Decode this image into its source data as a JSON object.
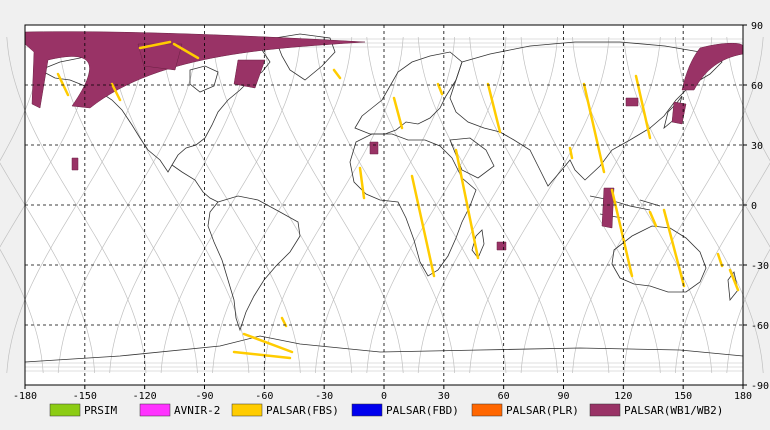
{
  "map": {
    "projection": "equirectangular",
    "lon_range": [
      -180,
      180
    ],
    "lat_range": [
      -90,
      90
    ],
    "x_ticks": [
      "-180",
      "-150",
      "-120",
      "-90",
      "-60",
      "-30",
      "0",
      "30",
      "60",
      "90",
      "120",
      "150",
      "180"
    ],
    "y_ticks_right": [
      "90",
      "60",
      "30",
      "0",
      "-30",
      "-60",
      "-90"
    ],
    "grid": "dashed",
    "background": "#ffffff",
    "page_background": "#f0f0f0"
  },
  "legend": [
    {
      "label": "PRSIM",
      "color": "#8ccc14"
    },
    {
      "label": "AVNIR-2",
      "color": "#ff33ff"
    },
    {
      "label": "PALSAR(FBS)",
      "color": "#ffcc00"
    },
    {
      "label": "PALSAR(FBD)",
      "color": "#0000ee"
    },
    {
      "label": "PALSAR(PLR)",
      "color": "#ff6600"
    },
    {
      "label": "PALSAR(WB1/WB2)",
      "color": "#993366"
    }
  ],
  "colors": {
    "coastline": "#333333",
    "orbit_track": "#c0c0c0",
    "fbs": "#ffcc00",
    "wb": "#993366"
  }
}
